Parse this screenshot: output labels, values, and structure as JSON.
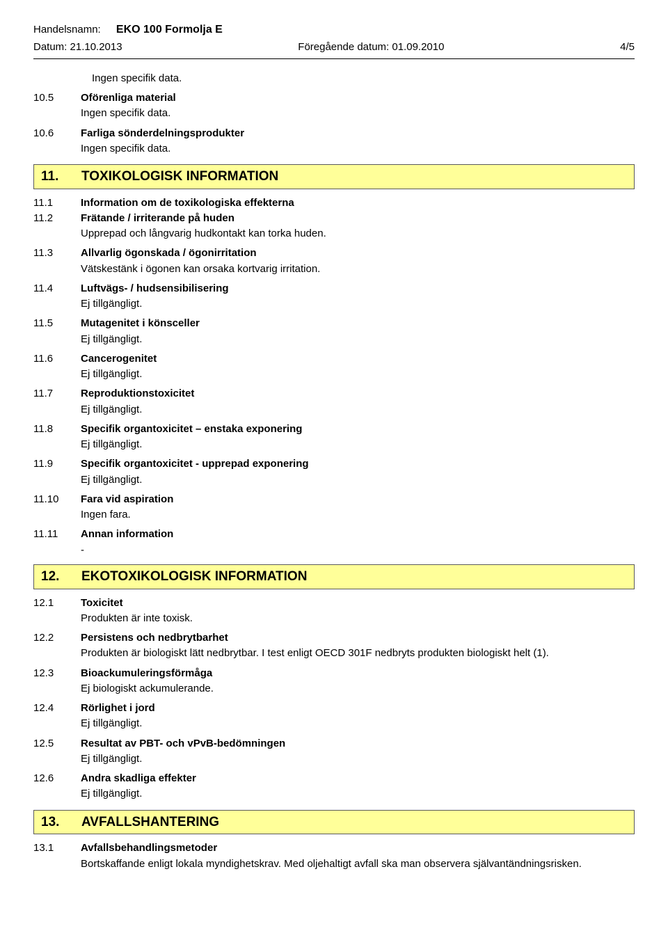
{
  "header": {
    "trade_name_label": "Handelsnamn:",
    "trade_name": "EKO 100 Formolja E",
    "date_label": "Datum: 21.10.2013",
    "prev_date_label": "Föregående datum: 01.09.2010",
    "page": "4/5"
  },
  "pre_items": [
    {
      "num": "",
      "label": "",
      "text": "Ingen specifik data."
    },
    {
      "num": "10.5",
      "label": "Oförenliga material",
      "text": "Ingen specifik data."
    },
    {
      "num": "10.6",
      "label": "Farliga sönderdelningsprodukter",
      "text": "Ingen specifik data."
    }
  ],
  "section11": {
    "num": "11.",
    "title": "TOXIKOLOGISK INFORMATION",
    "items": [
      {
        "num": "11.1",
        "label": "Information om de toxikologiska effekterna",
        "text": ""
      },
      {
        "num": "11.2",
        "label": "Frätande / irriterande på huden",
        "text": "Upprepad och långvarig hudkontakt kan torka huden."
      },
      {
        "num": "11.3",
        "label": "Allvarlig ögonskada / ögonirritation",
        "text": "Vätskestänk i ögonen kan orsaka kortvarig irritation."
      },
      {
        "num": "11.4",
        "label": "Luftvägs- / hudsensibilisering",
        "text": "Ej tillgängligt."
      },
      {
        "num": "11.5",
        "label": "Mutagenitet i könsceller",
        "text": "Ej tillgängligt."
      },
      {
        "num": "11.6",
        "label": "Cancerogenitet",
        "text": "Ej tillgängligt."
      },
      {
        "num": "11.7",
        "label": "Reproduktionstoxicitet",
        "text": "Ej tillgängligt."
      },
      {
        "num": "11.8",
        "label": "Specifik organtoxicitet – enstaka exponering",
        "text": "Ej tillgängligt."
      },
      {
        "num": "11.9",
        "label": "Specifik organtoxicitet - upprepad exponering",
        "text": "Ej tillgängligt."
      },
      {
        "num": "11.10",
        "label": "Fara vid aspiration",
        "text": "Ingen fara."
      },
      {
        "num": "11.11",
        "label": "Annan information",
        "text": "-"
      }
    ]
  },
  "section12": {
    "num": "12.",
    "title": "EKOTOXIKOLOGISK INFORMATION",
    "items": [
      {
        "num": "12.1",
        "label": "Toxicitet",
        "text": "Produkten är inte toxisk."
      },
      {
        "num": "12.2",
        "label": "Persistens och nedbrytbarhet",
        "text": "Produkten är biologiskt lätt nedbrytbar. I test enligt OECD 301F nedbryts produkten biologiskt helt (1)."
      },
      {
        "num": "12.3",
        "label": "Bioackumuleringsförmåga",
        "text": "Ej biologiskt ackumulerande."
      },
      {
        "num": "12.4",
        "label": "Rörlighet i jord",
        "text": "Ej tillgängligt."
      },
      {
        "num": "12.5",
        "label": "Resultat av PBT- och vPvB-bedömningen",
        "text": "Ej tillgängligt."
      },
      {
        "num": "12.6",
        "label": "Andra skadliga effekter",
        "text": "Ej tillgängligt."
      }
    ]
  },
  "section13": {
    "num": "13.",
    "title": "AVFALLSHANTERING",
    "items": [
      {
        "num": "13.1",
        "label": "Avfallsbehandlingsmetoder",
        "text": "Bortskaffande enligt lokala myndighetskrav. Med oljehaltigt avfall ska man observera självantändningsrisken."
      }
    ]
  },
  "colors": {
    "section_bg": "#ffff99",
    "section_border": "#5a5a5a",
    "text": "#000000",
    "rule": "#000000"
  }
}
